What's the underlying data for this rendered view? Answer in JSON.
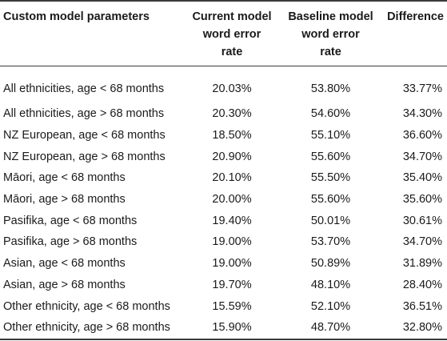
{
  "headers": {
    "param": "Custom model parameters",
    "current": [
      "Current model",
      "word error",
      "rate"
    ],
    "baseline": [
      "Baseline model",
      "word error",
      "rate"
    ],
    "difference": "Difference"
  },
  "rows": [
    {
      "param": "All ethnicities, age < 68 months",
      "current": "20.03%",
      "baseline": "53.80%",
      "difference": "33.77%"
    },
    {
      "param": "All ethnicities, age > 68 months",
      "current": "20.30%",
      "baseline": "54.60%",
      "difference": "34.30%"
    },
    {
      "param": "NZ European, age < 68 months",
      "current": "18.50%",
      "baseline": "55.10%",
      "difference": "36.60%"
    },
    {
      "param": "NZ European, age > 68 months",
      "current": "20.90%",
      "baseline": "55.60%",
      "difference": "34.70%"
    },
    {
      "param": "Māori, age < 68 months",
      "current": "20.10%",
      "baseline": "55.50%",
      "difference": "35.40%"
    },
    {
      "param": "Māori, age > 68 months",
      "current": "20.00%",
      "baseline": "55.60%",
      "difference": "35.60%"
    },
    {
      "param": "Pasifika, age < 68 months",
      "current": "19.40%",
      "baseline": "50.01%",
      "difference": "30.61%"
    },
    {
      "param": "Pasifika, age > 68 months",
      "current": "19.00%",
      "baseline": "53.70%",
      "difference": "34.70%"
    },
    {
      "param": "Asian, age < 68 months",
      "current": "19.00%",
      "baseline": "50.89%",
      "difference": "31.89%"
    },
    {
      "param": "Asian, age > 68 months",
      "current": "19.70%",
      "baseline": "48.10%",
      "difference": "28.40%"
    },
    {
      "param": "Other ethnicity, age < 68 months",
      "current": "15.59%",
      "baseline": "52.10%",
      "difference": "36.51%"
    },
    {
      "param": "Other ethnicity, age > 68 months",
      "current": "15.90%",
      "baseline": "48.70%",
      "difference": "32.80%"
    }
  ]
}
